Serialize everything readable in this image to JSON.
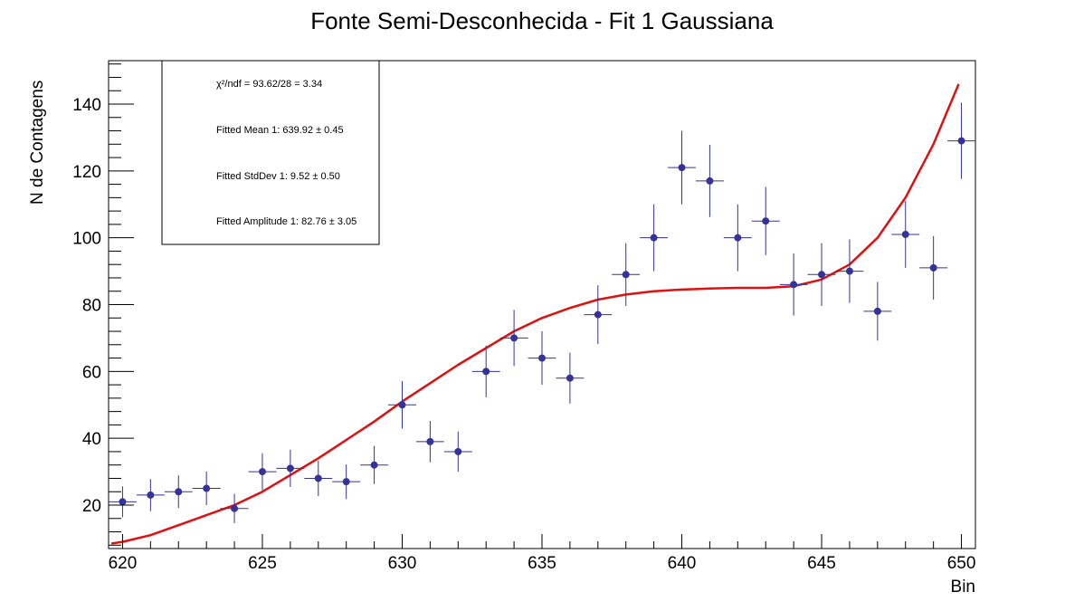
{
  "chart_data": {
    "type": "scatter",
    "title": "Fonte Semi-Desconhecida - Fit 1 Gaussiana",
    "xlabel": "Bin",
    "ylabel": "N de Contagens",
    "xlim": [
      619.5,
      650.5
    ],
    "ylim": [
      7,
      153
    ],
    "x_ticks": [
      620,
      625,
      630,
      635,
      640,
      645,
      650
    ],
    "y_ticks": [
      20,
      40,
      60,
      80,
      100,
      120,
      140
    ],
    "grid": false,
    "series": [
      {
        "kind": "errorbar_points",
        "color": "#333399",
        "x": [
          620,
          621,
          622,
          623,
          624,
          625,
          626,
          627,
          628,
          629,
          630,
          631,
          632,
          633,
          634,
          635,
          636,
          637,
          638,
          639,
          640,
          641,
          642,
          643,
          644,
          645,
          646,
          647,
          648,
          649,
          650
        ],
        "y": [
          21,
          23,
          24,
          25,
          19,
          30,
          31,
          28,
          27,
          32,
          50,
          39,
          36,
          60,
          70,
          64,
          58,
          77,
          89,
          100,
          121,
          117,
          100,
          105,
          86,
          89,
          90,
          78,
          101,
          91,
          129
        ],
        "x_err": 0.5,
        "y_err": [
          4.6,
          4.8,
          4.9,
          5.0,
          4.4,
          5.5,
          5.6,
          5.3,
          5.2,
          5.7,
          7.1,
          6.2,
          6.0,
          7.7,
          8.4,
          8.0,
          7.6,
          8.8,
          9.4,
          10.0,
          11.0,
          10.8,
          10.0,
          10.2,
          9.3,
          9.4,
          9.5,
          8.8,
          10.0,
          9.5,
          11.4
        ]
      },
      {
        "kind": "fit_curve",
        "color": "#e01010",
        "x": [
          619.6,
          620,
          621,
          622,
          623,
          624,
          625,
          626,
          627,
          628,
          629,
          630,
          631,
          632,
          633,
          634,
          635,
          636,
          637,
          638,
          639,
          640,
          641,
          642,
          643,
          644,
          645,
          646,
          647,
          648,
          649,
          649.9
        ],
        "y": [
          8.5,
          9,
          11,
          14,
          17,
          20,
          24,
          29,
          34,
          39.5,
          45,
          51,
          56.5,
          62,
          67,
          72,
          76,
          79,
          81.5,
          83,
          84,
          84.5,
          84.8,
          85,
          85,
          85.5,
          87.5,
          92,
          100,
          112,
          128,
          146
        ]
      }
    ],
    "stats_box": {
      "lines": [
        "χ²/ndf = 93.62/28 = 3.34",
        "Fitted Mean 1: 639.92 ± 0.45",
        "Fitted StdDev 1: 9.52 ± 0.50",
        "Fitted Amplitude 1: 82.76 ± 3.05"
      ]
    }
  }
}
